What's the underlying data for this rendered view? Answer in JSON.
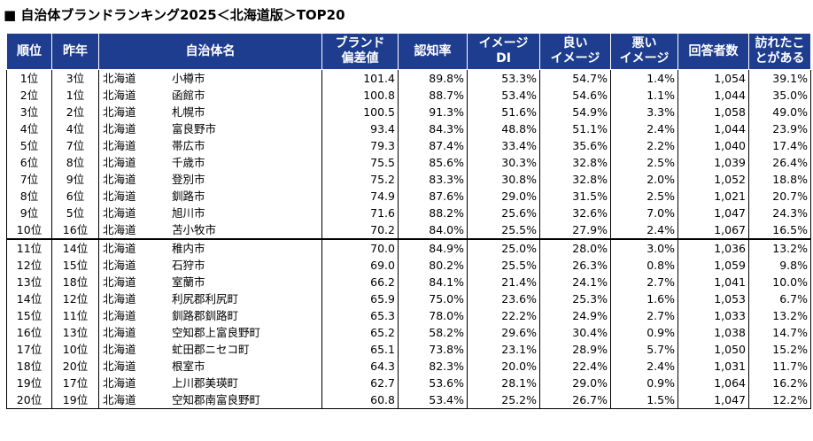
{
  "title": "■ 自治体ブランドランキング2025＜北海道版＞TOP20",
  "headers": {
    "rank": "順位",
    "prev": "昨年",
    "name": "自治体名",
    "brand1": "ブランド",
    "brand2": "偏差値",
    "awareness": "認知率",
    "image1": "イメージ",
    "image2": "DI",
    "good1": "良い",
    "good2": "イメージ",
    "bad1": "悪い",
    "bad2": "イメージ",
    "respondents": "回答者数",
    "visited1": "訪れたこ",
    "visited2": "とがある"
  },
  "rows": [
    {
      "rank": "1位",
      "prev": "3位",
      "pref": "北海道",
      "name": "小樽市",
      "brand": "101.4",
      "awareness": "89.8%",
      "di": "53.3%",
      "good": "54.7%",
      "bad": "1.4%",
      "resp": "1,054",
      "visited": "39.1%"
    },
    {
      "rank": "2位",
      "prev": "1位",
      "pref": "北海道",
      "name": "函館市",
      "brand": "100.8",
      "awareness": "88.7%",
      "di": "53.4%",
      "good": "54.6%",
      "bad": "1.1%",
      "resp": "1,044",
      "visited": "35.0%"
    },
    {
      "rank": "3位",
      "prev": "2位",
      "pref": "北海道",
      "name": "札幌市",
      "brand": "100.5",
      "awareness": "91.3%",
      "di": "51.6%",
      "good": "54.9%",
      "bad": "3.3%",
      "resp": "1,058",
      "visited": "49.0%"
    },
    {
      "rank": "4位",
      "prev": "4位",
      "pref": "北海道",
      "name": "富良野市",
      "brand": "93.4",
      "awareness": "84.3%",
      "di": "48.8%",
      "good": "51.1%",
      "bad": "2.4%",
      "resp": "1,044",
      "visited": "23.9%"
    },
    {
      "rank": "5位",
      "prev": "7位",
      "pref": "北海道",
      "name": "帯広市",
      "brand": "79.3",
      "awareness": "87.4%",
      "di": "33.4%",
      "good": "35.6%",
      "bad": "2.2%",
      "resp": "1,040",
      "visited": "17.4%"
    },
    {
      "rank": "6位",
      "prev": "8位",
      "pref": "北海道",
      "name": "千歳市",
      "brand": "75.5",
      "awareness": "85.6%",
      "di": "30.3%",
      "good": "32.8%",
      "bad": "2.5%",
      "resp": "1,039",
      "visited": "26.4%"
    },
    {
      "rank": "7位",
      "prev": "9位",
      "pref": "北海道",
      "name": "登別市",
      "brand": "75.2",
      "awareness": "83.3%",
      "di": "30.8%",
      "good": "32.8%",
      "bad": "2.0%",
      "resp": "1,052",
      "visited": "18.8%"
    },
    {
      "rank": "8位",
      "prev": "6位",
      "pref": "北海道",
      "name": "釧路市",
      "brand": "74.9",
      "awareness": "87.6%",
      "di": "29.0%",
      "good": "31.5%",
      "bad": "2.5%",
      "resp": "1,021",
      "visited": "20.7%"
    },
    {
      "rank": "9位",
      "prev": "5位",
      "pref": "北海道",
      "name": "旭川市",
      "brand": "71.6",
      "awareness": "88.2%",
      "di": "25.6%",
      "good": "32.6%",
      "bad": "7.0%",
      "resp": "1,047",
      "visited": "24.3%"
    },
    {
      "rank": "10位",
      "prev": "16位",
      "pref": "北海道",
      "name": "苫小牧市",
      "brand": "70.2",
      "awareness": "84.0%",
      "di": "25.5%",
      "good": "27.9%",
      "bad": "2.4%",
      "resp": "1,067",
      "visited": "16.5%"
    },
    {
      "rank": "11位",
      "prev": "14位",
      "pref": "北海道",
      "name": "稚内市",
      "brand": "70.0",
      "awareness": "84.9%",
      "di": "25.0%",
      "good": "28.0%",
      "bad": "3.0%",
      "resp": "1,036",
      "visited": "13.2%"
    },
    {
      "rank": "12位",
      "prev": "15位",
      "pref": "北海道",
      "name": "石狩市",
      "brand": "69.0",
      "awareness": "80.2%",
      "di": "25.5%",
      "good": "26.3%",
      "bad": "0.8%",
      "resp": "1,059",
      "visited": "9.8%"
    },
    {
      "rank": "13位",
      "prev": "18位",
      "pref": "北海道",
      "name": "室蘭市",
      "brand": "66.2",
      "awareness": "84.1%",
      "di": "21.4%",
      "good": "24.1%",
      "bad": "2.7%",
      "resp": "1,041",
      "visited": "10.0%"
    },
    {
      "rank": "14位",
      "prev": "12位",
      "pref": "北海道",
      "name": "利尻郡利尻町",
      "brand": "65.9",
      "awareness": "75.0%",
      "di": "23.6%",
      "good": "25.3%",
      "bad": "1.6%",
      "resp": "1,053",
      "visited": "6.7%"
    },
    {
      "rank": "15位",
      "prev": "11位",
      "pref": "北海道",
      "name": "釧路郡釧路町",
      "brand": "65.3",
      "awareness": "78.0%",
      "di": "22.2%",
      "good": "24.9%",
      "bad": "2.7%",
      "resp": "1,033",
      "visited": "13.2%"
    },
    {
      "rank": "16位",
      "prev": "13位",
      "pref": "北海道",
      "name": "空知郡上富良野町",
      "brand": "65.2",
      "awareness": "58.2%",
      "di": "29.6%",
      "good": "30.4%",
      "bad": "0.9%",
      "resp": "1,038",
      "visited": "14.7%"
    },
    {
      "rank": "17位",
      "prev": "10位",
      "pref": "北海道",
      "name": "虻田郡ニセコ町",
      "brand": "65.1",
      "awareness": "73.8%",
      "di": "23.1%",
      "good": "28.9%",
      "bad": "5.7%",
      "resp": "1,050",
      "visited": "15.2%"
    },
    {
      "rank": "18位",
      "prev": "20位",
      "pref": "北海道",
      "name": "根室市",
      "brand": "64.3",
      "awareness": "82.3%",
      "di": "20.0%",
      "good": "22.4%",
      "bad": "2.4%",
      "resp": "1,031",
      "visited": "11.7%"
    },
    {
      "rank": "19位",
      "prev": "17位",
      "pref": "北海道",
      "name": "上川郡美瑛町",
      "brand": "62.7",
      "awareness": "53.6%",
      "di": "28.1%",
      "good": "29.0%",
      "bad": "0.9%",
      "resp": "1,064",
      "visited": "16.2%"
    },
    {
      "rank": "20位",
      "prev": "19位",
      "pref": "北海道",
      "name": "空知郡南富良野町",
      "brand": "60.8",
      "awareness": "53.4%",
      "di": "25.2%",
      "good": "26.7%",
      "bad": "1.5%",
      "resp": "1,047",
      "visited": "12.2%"
    }
  ]
}
